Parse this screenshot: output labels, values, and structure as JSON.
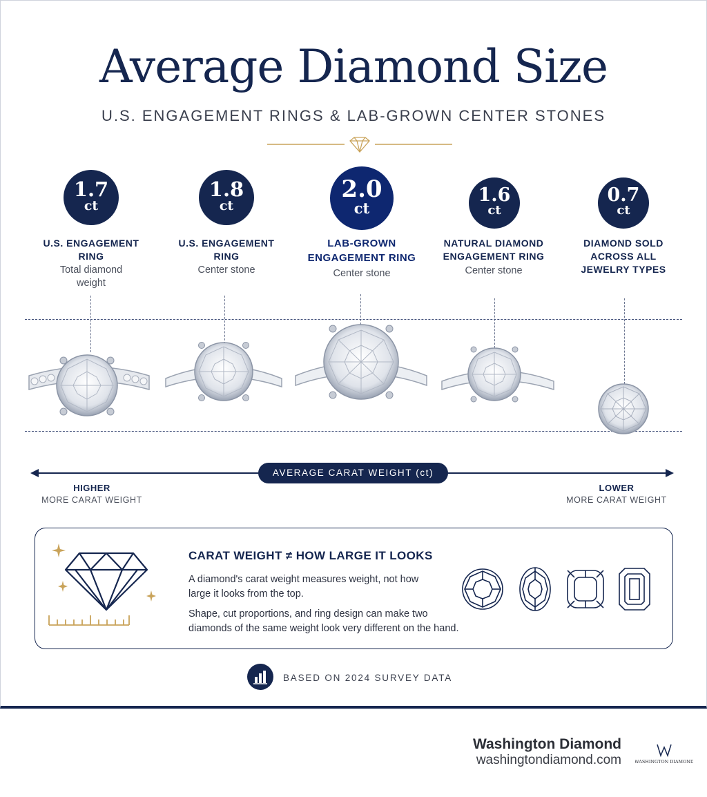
{
  "header": {
    "title": "Average Diamond Size",
    "subtitle": "U.S. ENGAGEMENT RINGS & LAB-GROWN CENTER STONES"
  },
  "stats": [
    {
      "value": "1.7",
      "unit": "ct",
      "label_line1": "U.S. ENGAGEMENT",
      "label_line2": "RING",
      "sub_line1": "Total diamond",
      "sub_line2": "weight"
    },
    {
      "value": "1.8",
      "unit": "ct",
      "label_line1": "U.S. ENGAGEMENT",
      "label_line2": "RING",
      "sub_line1": "Center stone",
      "sub_line2": ""
    },
    {
      "value": "2.0",
      "unit": "ct",
      "label_line1": "LAB-GROWN",
      "label_line2": "ENGAGEMENT RING",
      "sub_line1": "Center stone",
      "sub_line2": ""
    },
    {
      "value": "1.6",
      "unit": "ct",
      "label_line1": "NATURAL DIAMOND",
      "label_line2": "ENGAGEMENT RING",
      "sub_line1": "Center stone",
      "sub_line2": ""
    },
    {
      "value": "0.7",
      "unit": "ct",
      "label_line1": "DIAMOND SOLD",
      "label_line2": "ACROSS ALL",
      "label_line3": "JEWELRY TYPES"
    }
  ],
  "axis": {
    "label": "AVERAGE CARAT WEIGHT (ct)",
    "left_heading": "HIGHER",
    "left_sub": "MORE CARAT WEIGHT",
    "right_heading": "LOWER",
    "right_sub": "MORE CARAT WEIGHT"
  },
  "info_card": {
    "title": "CARAT WEIGHT ≠ HOW LARGE IT LOOKS",
    "paragraph1_line1": "A diamond's carat weight measures weight, not how",
    "paragraph1_line2": "large it looks from the top.",
    "paragraph2_line1": "Shape, cut proportions, and ring design can make two",
    "paragraph2_line2": "diamonds of the same weight look very different on the hand.",
    "shape_icons": [
      "round-diamond-icon",
      "oval-diamond-icon",
      "cushion-diamond-icon",
      "emerald-diamond-icon"
    ]
  },
  "footer": {
    "survey_note": "BASED ON 2024 SURVEY DATA",
    "brand_name": "Washington Diamond",
    "brand_url": "washingtondiamond.com",
    "logo_text": "WASHINGTON DIAMOND"
  },
  "colors": {
    "navy": "#15264f",
    "royal": "#0e2770",
    "gold": "#c9a35a"
  }
}
